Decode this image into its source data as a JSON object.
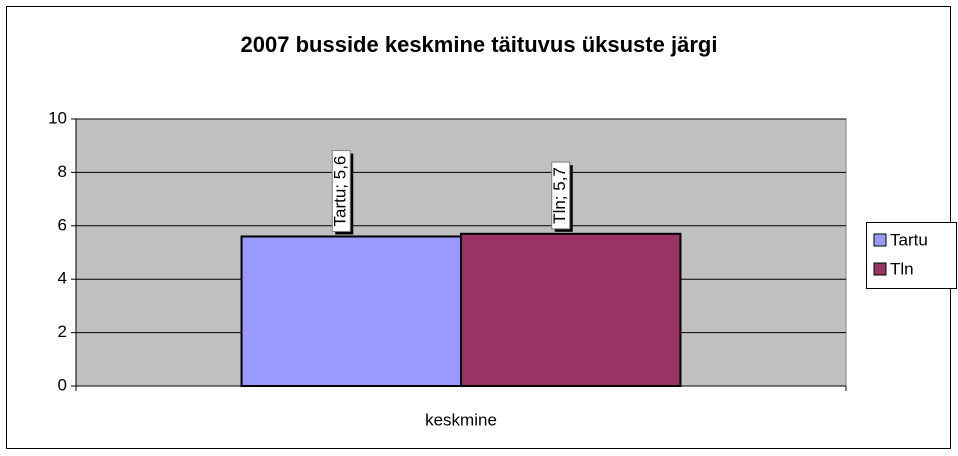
{
  "chart_data": {
    "type": "bar",
    "title": "2007 busside keskmine täituvus üksuste järgi",
    "categories": [
      "keskmine"
    ],
    "series": [
      {
        "name": "Tartu",
        "color": "#9999ff",
        "values": [
          5.6
        ],
        "value_labels": [
          "Tartu; 5,6"
        ]
      },
      {
        "name": "Tln",
        "color": "#993366",
        "values": [
          5.7
        ],
        "value_labels": [
          "Tln; 5,7"
        ]
      }
    ],
    "ylim": [
      0,
      10
    ],
    "yticks": [
      0,
      2,
      4,
      6,
      8,
      10
    ],
    "grid": true,
    "plot_background": "#c0c0c0",
    "legend": "right"
  }
}
